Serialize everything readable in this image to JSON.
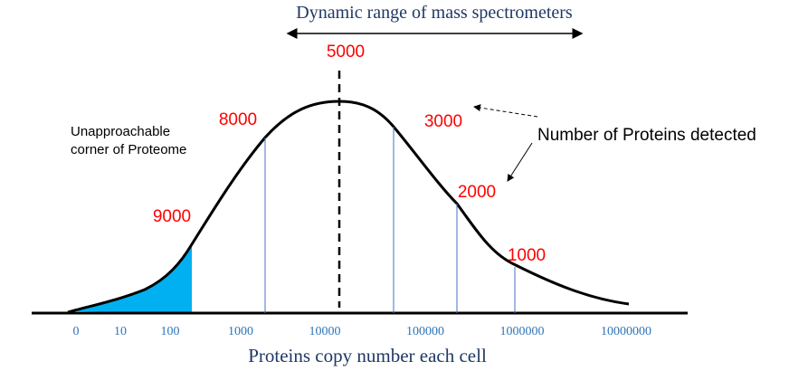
{
  "title": "Dynamic range of mass spectrometers",
  "x_axis_label": "Proteins copy number each cell",
  "x_ticks": [
    "0",
    "10",
    "100",
    "1000",
    "10000",
    "100000",
    "1000000",
    "10000000"
  ],
  "peak_label": "5000",
  "point_labels": [
    "9000",
    "8000",
    "3000",
    "2000",
    "1000"
  ],
  "annotation_left": [
    "Unapproachable",
    "corner of Proteome"
  ],
  "annotation_right": "Number of Proteins detected",
  "colors": {
    "shaded_region": "#00b0f0",
    "point_labels": "#ff0000",
    "tick_labels": "#2e75b6",
    "axis_label": "#1f3864",
    "title": "#1f3864"
  }
}
